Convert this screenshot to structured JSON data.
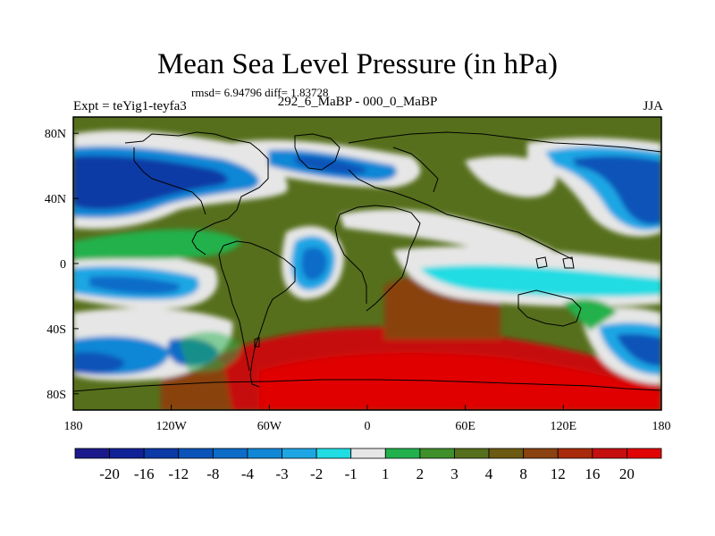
{
  "figure": {
    "title": "Mean Sea Level Pressure (in hPa)",
    "stats": "rmsd= 6.94796 diff= 1.83728",
    "experiment": "Expt = teYig1-teyfa3",
    "comparison": "292_6_MaBP - 000_0_MaBP",
    "season": "JJA"
  },
  "chart_data": {
    "type": "heatmap",
    "title": "Mean Sea Level Pressure (in hPa)",
    "x_ticks": [
      "180",
      "120W",
      "60W",
      "0",
      "60E",
      "120E",
      "180"
    ],
    "y_ticks": [
      "80N",
      "40N",
      "0",
      "40S",
      "80S"
    ],
    "x_range": [
      -180,
      180
    ],
    "y_range": [
      -90,
      90
    ],
    "colorbar": {
      "labels": [
        "-20",
        "-16",
        "-12",
        "-8",
        "-4",
        "-3",
        "-2",
        "-1",
        "1",
        "2",
        "3",
        "4",
        "8",
        "12",
        "16",
        "20"
      ],
      "colors": [
        "#1a1a8c",
        "#102296",
        "#0c3aa6",
        "#0b53b8",
        "#0c6cc8",
        "#1187d6",
        "#1ea6e4",
        "#20dce3",
        "#e6e6e6",
        "#22b14c",
        "#3f8f2a",
        "#566f1c",
        "#6b5a12",
        "#8a4210",
        "#a82a0a",
        "#c61010",
        "#e00404"
      ]
    }
  }
}
